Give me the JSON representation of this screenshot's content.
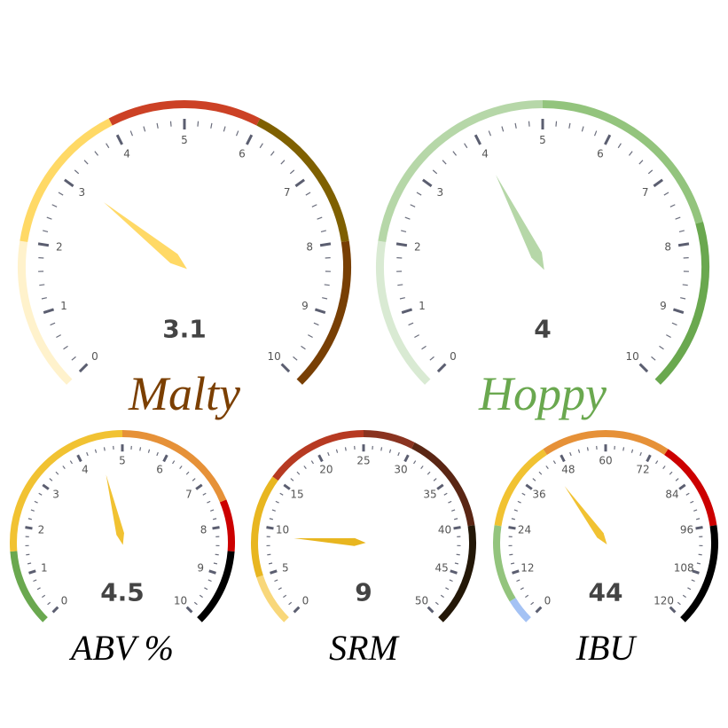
{
  "chart_data": [
    {
      "type": "gauge",
      "title": "Malty",
      "title_color": "#7b3f00",
      "min": 0,
      "max": 10,
      "value": 3.1,
      "value_label": "3.1",
      "major_step": 1,
      "minor_per_major": 5,
      "tick_labels": [
        "0",
        "1",
        "2",
        "3",
        "4",
        "5",
        "6",
        "7",
        "8",
        "9",
        "10"
      ],
      "needle_color": "#ffd966",
      "bands": [
        {
          "from": 0,
          "to": 2,
          "color": "#fff2cc"
        },
        {
          "from": 2,
          "to": 4,
          "color": "#ffd966"
        },
        {
          "from": 4,
          "to": 6,
          "color": "#cc4125"
        },
        {
          "from": 6,
          "to": 8,
          "color": "#7f6000"
        },
        {
          "from": 8,
          "to": 10,
          "color": "#783f04"
        }
      ]
    },
    {
      "type": "gauge",
      "title": "Hoppy",
      "title_color": "#6aa84f",
      "min": 0,
      "max": 10,
      "value": 4,
      "value_label": "4",
      "major_step": 1,
      "minor_per_major": 5,
      "tick_labels": [
        "0",
        "1",
        "2",
        "3",
        "4",
        "5",
        "6",
        "7",
        "8",
        "9",
        "10"
      ],
      "needle_color": "#b6d7a8",
      "bands": [
        {
          "from": 0,
          "to": 2,
          "color": "#d9ead3"
        },
        {
          "from": 2,
          "to": 5,
          "color": "#b6d7a8"
        },
        {
          "from": 5,
          "to": 7.75,
          "color": "#93c47d"
        },
        {
          "from": 7.75,
          "to": 10,
          "color": "#6aa84f"
        }
      ]
    },
    {
      "type": "gauge",
      "title": "ABV %",
      "title_color": "#000000",
      "min": 0,
      "max": 10,
      "value": 4.5,
      "value_label": "4.5",
      "major_step": 1,
      "minor_per_major": 5,
      "tick_labels": [
        "0",
        "1",
        "2",
        "3",
        "4",
        "5",
        "6",
        "7",
        "8",
        "9",
        "10"
      ],
      "needle_color": "#f1c232",
      "bands": [
        {
          "from": 0,
          "to": 1.5,
          "color": "#6aa84f"
        },
        {
          "from": 1.5,
          "to": 5,
          "color": "#f1c232"
        },
        {
          "from": 5,
          "to": 7.5,
          "color": "#e69138"
        },
        {
          "from": 7.5,
          "to": 8.5,
          "color": "#cc0000"
        },
        {
          "from": 8.5,
          "to": 10,
          "color": "#000000"
        }
      ]
    },
    {
      "type": "gauge",
      "title": "SRM",
      "title_color": "#000000",
      "min": 0,
      "max": 50,
      "value": 9,
      "value_label": "9",
      "major_step": 5,
      "minor_per_major": 5,
      "tick_labels": [
        "0",
        "5",
        "10",
        "15",
        "20",
        "25",
        "30",
        "35",
        "40",
        "45",
        "50"
      ],
      "needle_color": "#e8b620",
      "bands": [
        {
          "from": 0,
          "to": 5,
          "color": "#f8d77a"
        },
        {
          "from": 5,
          "to": 15,
          "color": "#e8b620"
        },
        {
          "from": 15,
          "to": 25,
          "color": "#b73a22"
        },
        {
          "from": 25,
          "to": 30,
          "color": "#8a3320"
        },
        {
          "from": 30,
          "to": 40,
          "color": "#5a2614"
        },
        {
          "from": 40,
          "to": 50,
          "color": "#231707"
        }
      ]
    },
    {
      "type": "gauge",
      "title": "IBU",
      "title_color": "#000000",
      "min": 0,
      "max": 120,
      "value": 44,
      "value_label": "44",
      "major_step": 12,
      "minor_per_major": 5,
      "tick_labels": [
        "0",
        "12",
        "24",
        "36",
        "48",
        "60",
        "72",
        "84",
        "96",
        "108",
        "120"
      ],
      "needle_color": "#f1c232",
      "bands": [
        {
          "from": 0,
          "to": 6,
          "color": "#a4c2f4"
        },
        {
          "from": 6,
          "to": 24,
          "color": "#93c47d"
        },
        {
          "from": 24,
          "to": 45,
          "color": "#f1c232"
        },
        {
          "from": 45,
          "to": 75,
          "color": "#e69138"
        },
        {
          "from": 75,
          "to": 96,
          "color": "#cc0000"
        },
        {
          "from": 96,
          "to": 120,
          "color": "#000000"
        }
      ]
    }
  ]
}
